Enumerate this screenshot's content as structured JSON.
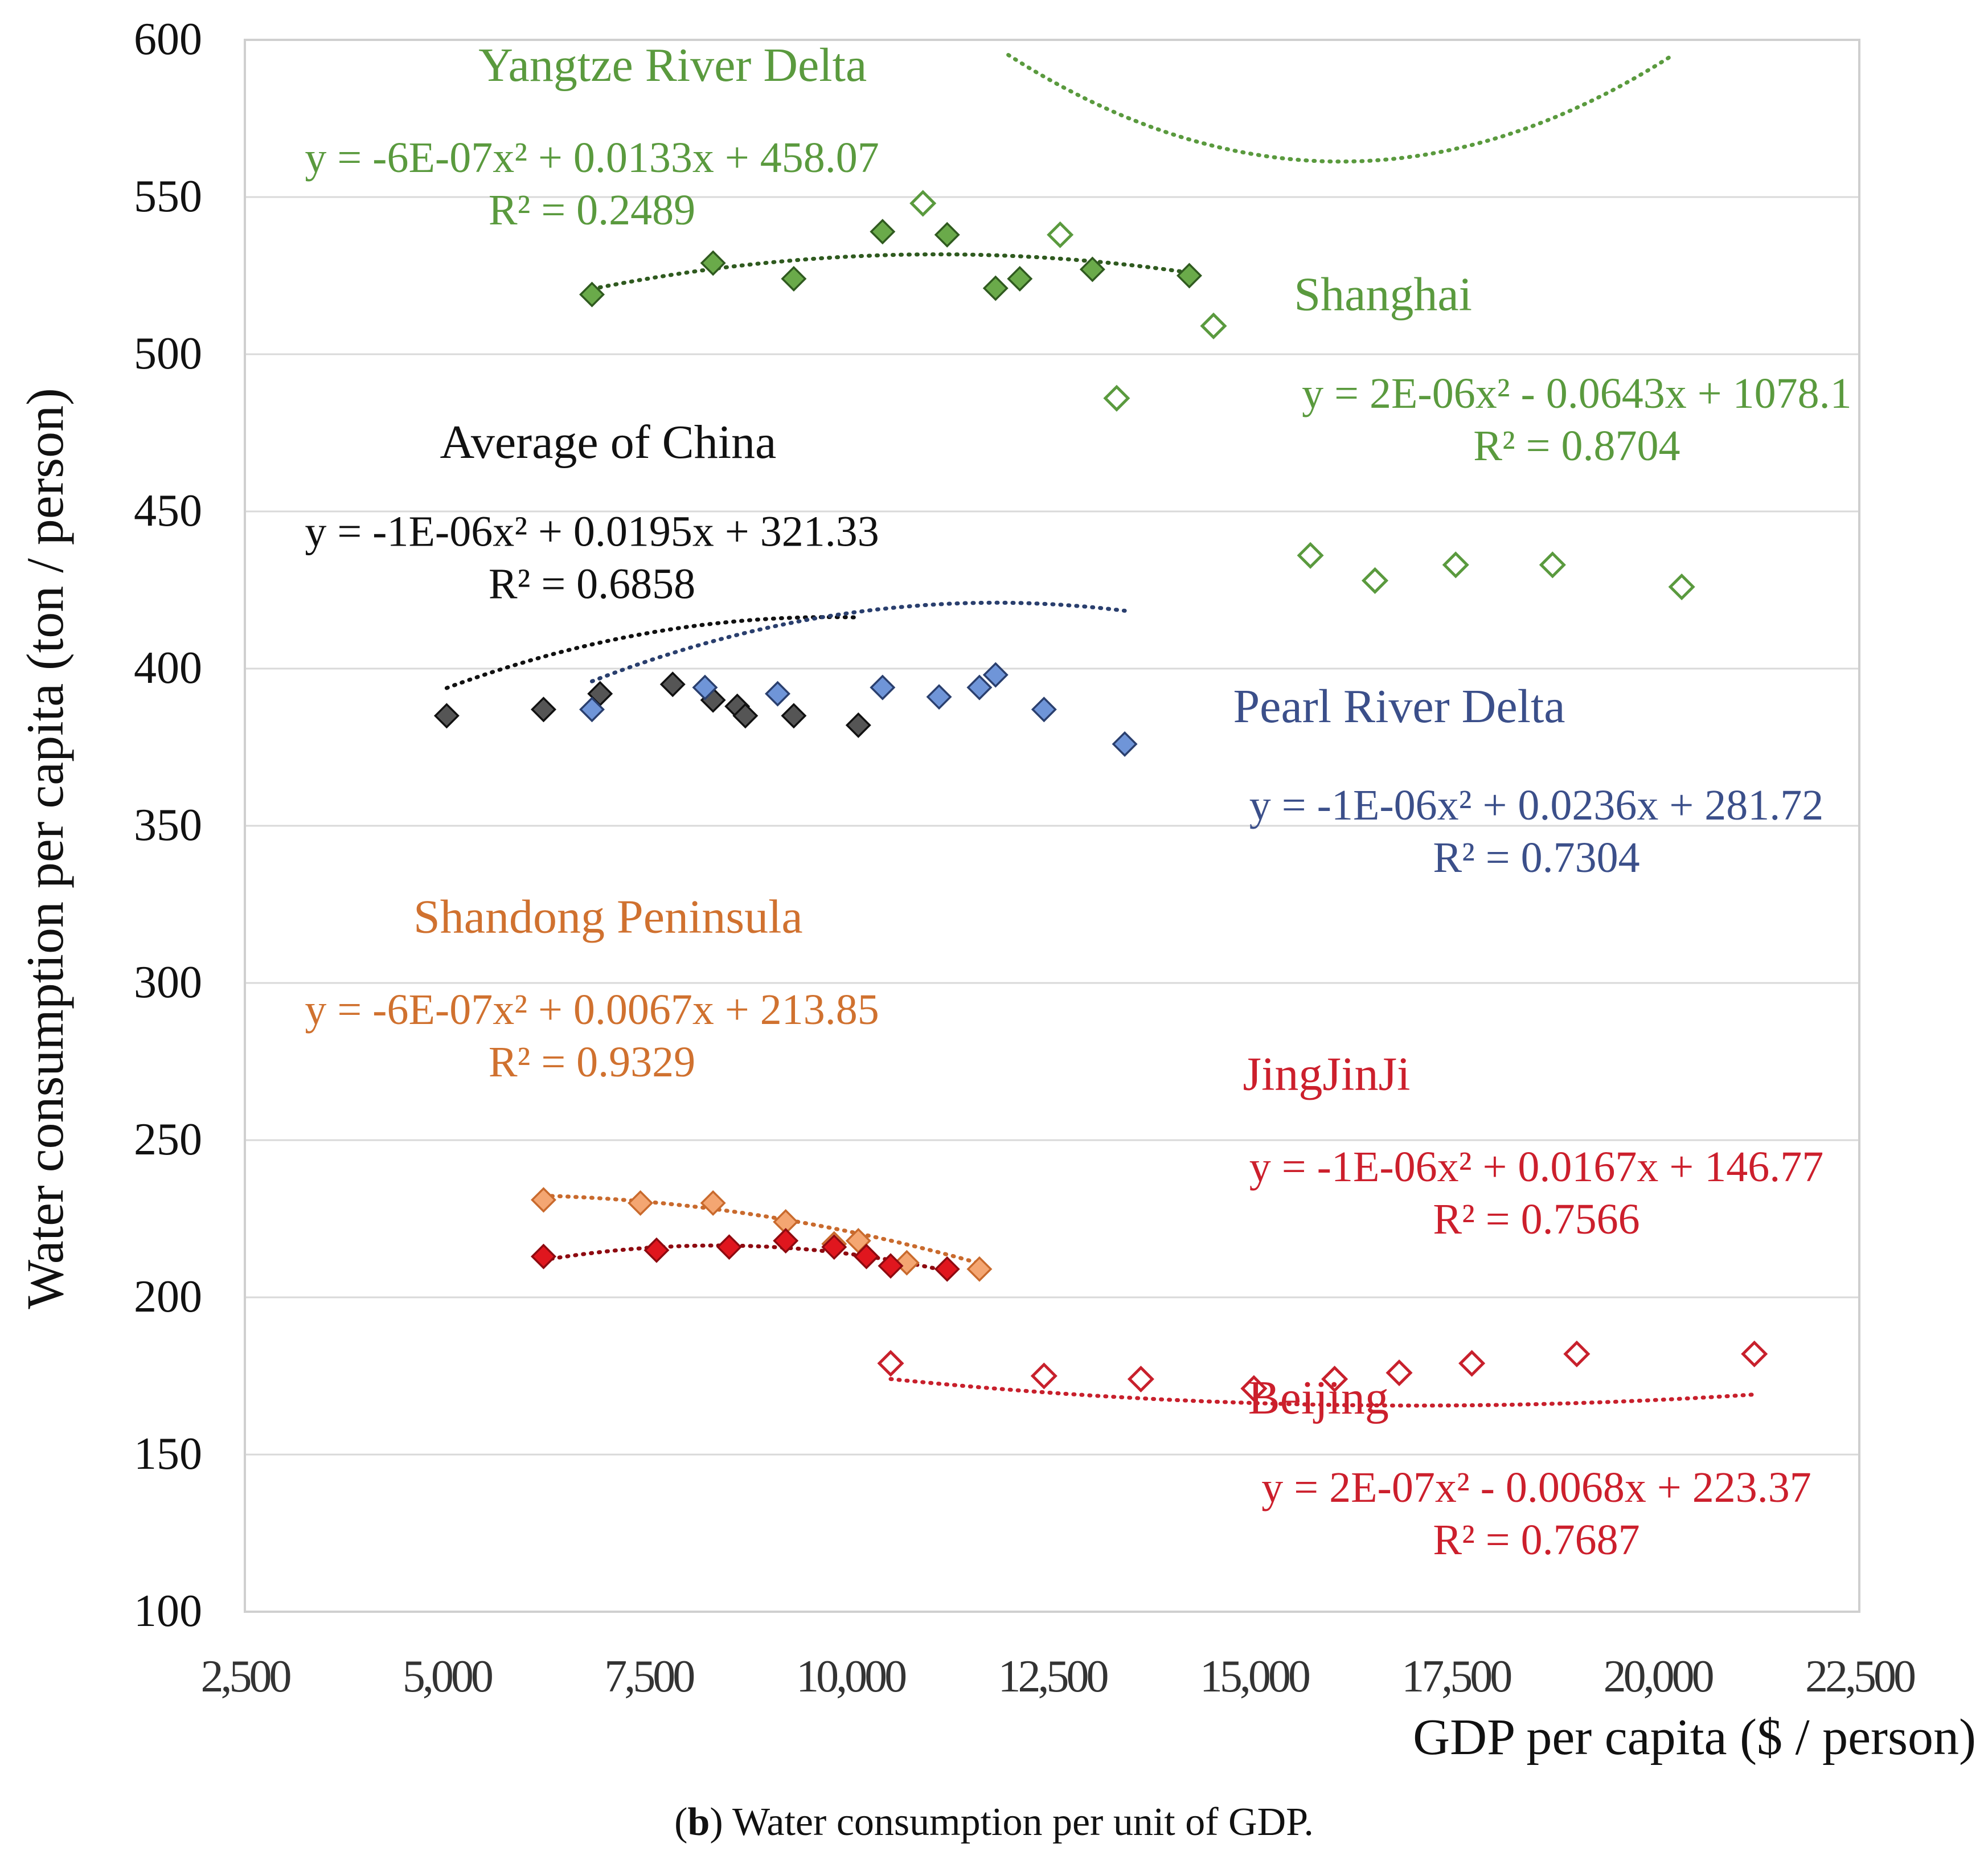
{
  "caption": {
    "prefix": "(",
    "bold": "b",
    "suffix": ") Water consumption per unit of GDP."
  },
  "chart_data": {
    "type": "scatter",
    "title": "",
    "xlabel": "GDP per capita  ($ / person)",
    "ylabel": "Water consumption per capita (ton / person)",
    "xlim": [
      2500,
      22500
    ],
    "ylim": [
      100,
      600
    ],
    "xticks": [
      2500,
      5000,
      7500,
      10000,
      12500,
      15000,
      17500,
      20000,
      22500
    ],
    "xtick_labels": [
      "2,500",
      "5,000",
      "7,500",
      "10,000",
      "12,500",
      "15,000",
      "17,500",
      "20,000",
      "22,500"
    ],
    "yticks": [
      100,
      150,
      200,
      250,
      300,
      350,
      400,
      450,
      500,
      550,
      600
    ],
    "ytick_labels": [
      "100",
      "150",
      "200",
      "250",
      "300",
      "350",
      "400",
      "450",
      "500",
      "550",
      "600"
    ],
    "grid": "horizontal",
    "series": [
      {
        "name": "Yangtze River Delta",
        "color": "#6aaa4a",
        "stroke": "#2f5a1f",
        "label_color": "#5a9a3e",
        "marker": "filled-diamond",
        "equation": "y = -6E-07x² + 0.0133x + 458.07",
        "r2": "R² = 0.2489",
        "trend": [
          -6e-07,
          0.0133,
          458.07
        ],
        "trend_range": [
          6800,
          14200
        ],
        "points": [
          [
            6800,
            519
          ],
          [
            8300,
            529
          ],
          [
            9300,
            524
          ],
          [
            10400,
            539
          ],
          [
            11200,
            538
          ],
          [
            11800,
            521
          ],
          [
            12100,
            524
          ],
          [
            13000,
            527
          ],
          [
            14200,
            525
          ]
        ]
      },
      {
        "name": "Shanghai",
        "color": "#ffffff",
        "stroke": "#5a9a3e",
        "label_color": "#5a9a3e",
        "marker": "hollow-diamond",
        "equation": "y = 2E-06x² - 0.0643x + 1078.1",
        "r2": "R² = 0.8704",
        "trend": [
          2e-06,
          -0.0643,
          1078.1
        ],
        "trend_range": [
          10900,
          20300
        ],
        "points": [
          [
            10900,
            548
          ],
          [
            12600,
            538
          ],
          [
            14500,
            509
          ],
          [
            13300,
            486
          ],
          [
            15700,
            436
          ],
          [
            16500,
            428
          ],
          [
            17500,
            433
          ],
          [
            18700,
            433
          ],
          [
            20300,
            426
          ]
        ]
      },
      {
        "name": "Average of China",
        "color": "#555555",
        "stroke": "#111111",
        "label_color": "#111111",
        "marker": "filled-diamond",
        "equation": "y = -1E-06x² + 0.0195x + 321.33",
        "r2": "R² = 0.6858",
        "trend": [
          -1e-06,
          0.0195,
          321.33
        ],
        "trend_range": [
          5000,
          10100
        ],
        "points": [
          [
            5000,
            385
          ],
          [
            6200,
            387
          ],
          [
            6900,
            392
          ],
          [
            7800,
            395
          ],
          [
            8300,
            390
          ],
          [
            8600,
            388
          ],
          [
            8700,
            385
          ],
          [
            9300,
            385
          ],
          [
            10100,
            382
          ]
        ]
      },
      {
        "name": "Pearl River Delta",
        "color": "#6f95d8",
        "stroke": "#2a3f6e",
        "label_color": "#3b4f8a",
        "marker": "filled-diamond",
        "equation": "y = -1E-06x² + 0.0236x + 281.72",
        "r2": "R² = 0.7304",
        "trend": [
          -1e-06,
          0.0236,
          281.72
        ],
        "trend_range": [
          6800,
          13400
        ],
        "points": [
          [
            6800,
            387
          ],
          [
            8200,
            394
          ],
          [
            9100,
            392
          ],
          [
            10400,
            394
          ],
          [
            11100,
            391
          ],
          [
            11600,
            394
          ],
          [
            11800,
            398
          ],
          [
            12400,
            387
          ],
          [
            13400,
            376
          ]
        ]
      },
      {
        "name": "Shandong Peninsula",
        "color": "#f4a672",
        "stroke": "#c96a2d",
        "label_color": "#d0712f",
        "marker": "filled-diamond",
        "equation": "y = -6E-07x² + 0.0067x + 213.85",
        "r2": "R² = 0.9329",
        "trend": [
          -6e-07,
          0.0067,
          213.85
        ],
        "trend_range": [
          6200,
          11600
        ],
        "points": [
          [
            6200,
            231
          ],
          [
            7400,
            230
          ],
          [
            8300,
            230
          ],
          [
            9200,
            224
          ],
          [
            9800,
            217
          ],
          [
            10100,
            218
          ],
          [
            10700,
            211
          ],
          [
            11600,
            209
          ]
        ]
      },
      {
        "name": "JingJinJi",
        "color": "#e0161e",
        "stroke": "#8e0a10",
        "label_color": "#cc1f2c",
        "marker": "filled-diamond",
        "equation": "y = -1E-06x² + 0.0167x + 146.77",
        "r2": "R² = 0.7566",
        "trend": [
          -1e-06,
          0.0167,
          146.77
        ],
        "trend_range": [
          6200,
          11200
        ],
        "points": [
          [
            6200,
            213
          ],
          [
            7600,
            215
          ],
          [
            8500,
            216
          ],
          [
            9200,
            218
          ],
          [
            9800,
            216
          ],
          [
            10200,
            213
          ],
          [
            10500,
            210
          ],
          [
            11200,
            209
          ]
        ]
      },
      {
        "name": "Beijing",
        "color": "#ffffff",
        "stroke": "#c8202c",
        "label_color": "#cc1f2c",
        "marker": "hollow-diamond",
        "equation": "y = 2E-07x² - 0.0068x + 223.37",
        "r2": "R² = 0.7687",
        "trend": [
          2e-07,
          -0.0068,
          223.37
        ],
        "trend_range": [
          10500,
          21200
        ],
        "points": [
          [
            10500,
            179
          ],
          [
            12400,
            175
          ],
          [
            13600,
            174
          ],
          [
            15000,
            171
          ],
          [
            16000,
            174
          ],
          [
            16800,
            176
          ],
          [
            17700,
            179
          ],
          [
            19000,
            182
          ],
          [
            21200,
            182
          ]
        ]
      }
    ],
    "annotations": [
      {
        "series": "Yangtze River Delta",
        "lines": [
          "Yangtze River Delta"
        ],
        "anchor": "title",
        "pos": [
          7800,
          587
        ]
      },
      {
        "series": "Yangtze River Delta",
        "lines": [
          "y = -6E-07x² + 0.0133x + 458.07",
          "R² = 0.2489"
        ],
        "anchor": "eq",
        "pos": [
          6800,
          558
        ]
      },
      {
        "series": "Shanghai",
        "lines": [
          "Shanghai"
        ],
        "anchor": "title",
        "pos": [
          16600,
          514
        ]
      },
      {
        "series": "Shanghai",
        "lines": [
          "y = 2E-06x² - 0.0643x + 1078.1",
          "R² = 0.8704"
        ],
        "anchor": "eq",
        "pos": [
          19000,
          483
        ]
      },
      {
        "series": "Average of China",
        "lines": [
          "Average of China"
        ],
        "anchor": "title",
        "pos": [
          7000,
          467
        ]
      },
      {
        "series": "Average of China",
        "lines": [
          "y = -1E-06x² + 0.0195x + 321.33",
          "R² = 0.6858"
        ],
        "anchor": "eq",
        "pos": [
          6800,
          439
        ]
      },
      {
        "series": "Pearl River Delta",
        "lines": [
          "Pearl River Delta"
        ],
        "anchor": "title",
        "pos": [
          16800,
          383
        ]
      },
      {
        "series": "Pearl River Delta",
        "lines": [
          "y = -1E-06x² + 0.0236x + 281.72",
          "R² = 0.7304"
        ],
        "anchor": "eq",
        "pos": [
          18500,
          352
        ]
      },
      {
        "series": "Shandong Peninsula",
        "lines": [
          "Shandong Peninsula"
        ],
        "anchor": "title",
        "pos": [
          7000,
          316
        ]
      },
      {
        "series": "Shandong Peninsula",
        "lines": [
          "y = -6E-07x² + 0.0067x + 213.85",
          "R² = 0.9329"
        ],
        "anchor": "eq",
        "pos": [
          6800,
          287
        ]
      },
      {
        "series": "JingJinJi",
        "lines": [
          "JingJinJi"
        ],
        "anchor": "title",
        "pos": [
          15900,
          266
        ]
      },
      {
        "series": "JingJinJi",
        "lines": [
          "y = -1E-06x² + 0.0167x + 146.77",
          "R² = 0.7566"
        ],
        "anchor": "eq",
        "pos": [
          18500,
          237
        ]
      },
      {
        "series": "Beijing",
        "lines": [
          "Beijing"
        ],
        "anchor": "title",
        "pos": [
          15800,
          163
        ]
      },
      {
        "series": "Beijing",
        "lines": [
          "y = 2E-07x² - 0.0068x + 223.37",
          "R² = 0.7687"
        ],
        "anchor": "eq",
        "pos": [
          18500,
          135
        ]
      }
    ]
  }
}
